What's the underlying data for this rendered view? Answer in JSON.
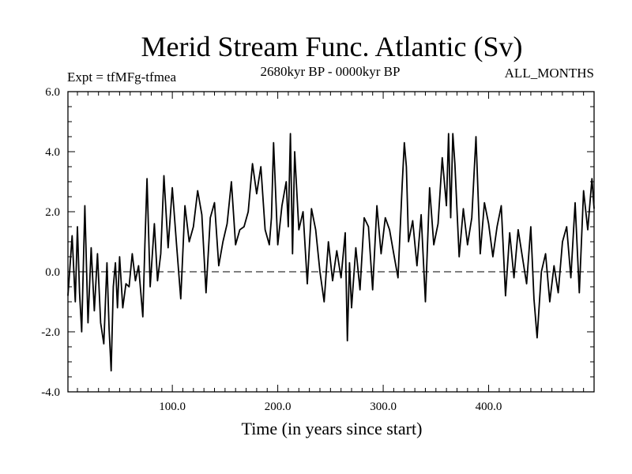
{
  "chart_data": {
    "type": "line",
    "title": "Merid Stream Func. Atlantic (Sv)",
    "subtitle_left": "Expt = tfMFg-tfmea",
    "subtitle_center": "2680kyr BP - 0000kyr BP",
    "subtitle_right": "ALL_MONTHS",
    "xlabel": "Time (in years since start)",
    "ylabel": "",
    "xlim": [
      1,
      500
    ],
    "ylim": [
      -4.0,
      6.0
    ],
    "x_ticks": [
      {
        "value": 100,
        "label": "100.0"
      },
      {
        "value": 200,
        "label": "200.0"
      },
      {
        "value": 300,
        "label": "300.0"
      },
      {
        "value": 400,
        "label": "400.0"
      }
    ],
    "y_ticks": [
      {
        "value": -4,
        "label": "-4.0"
      },
      {
        "value": -2,
        "label": "-2.0"
      },
      {
        "value": 0,
        "label": "0.0"
      },
      {
        "value": 2,
        "label": "2.0"
      },
      {
        "value": 4,
        "label": "4.0"
      },
      {
        "value": 6,
        "label": "6.0"
      }
    ],
    "reference_line": {
      "y": 0,
      "style": "dashed"
    },
    "series": [
      {
        "name": "Merid Stream Func. Atlantic",
        "x": [
          1,
          5,
          8,
          10,
          12,
          14,
          17,
          20,
          23,
          26,
          29,
          32,
          35,
          38,
          40,
          42,
          44,
          46,
          48,
          50,
          53,
          56,
          59,
          62,
          65,
          68,
          72,
          74,
          76,
          79,
          83,
          86,
          89,
          92,
          96,
          100,
          104,
          108,
          112,
          116,
          120,
          124,
          128,
          132,
          136,
          140,
          144,
          148,
          152,
          156,
          160,
          164,
          168,
          172,
          176,
          180,
          184,
          188,
          192,
          194,
          196,
          200,
          204,
          208,
          210,
          212,
          214,
          216,
          220,
          224,
          228,
          232,
          236,
          240,
          244,
          248,
          252,
          256,
          260,
          264,
          266,
          268,
          270,
          274,
          278,
          282,
          286,
          290,
          294,
          298,
          302,
          306,
          310,
          314,
          318,
          320,
          322,
          324,
          328,
          332,
          336,
          340,
          344,
          348,
          352,
          356,
          360,
          362,
          364,
          366,
          368,
          372,
          376,
          380,
          384,
          388,
          392,
          396,
          400,
          404,
          408,
          412,
          416,
          420,
          424,
          428,
          432,
          436,
          440,
          443,
          446,
          450,
          454,
          458,
          462,
          466,
          470,
          474,
          478,
          482,
          486,
          490,
          494,
          498,
          500
        ],
        "values": [
          -0.8,
          1.2,
          -1.0,
          1.5,
          -0.7,
          -2.0,
          2.2,
          -1.7,
          0.8,
          -1.3,
          0.6,
          -1.7,
          -2.4,
          0.3,
          -1.9,
          -3.3,
          -0.5,
          0.3,
          -1.2,
          0.5,
          -1.2,
          -0.4,
          -0.5,
          0.6,
          -0.3,
          0.2,
          -1.5,
          0.9,
          3.1,
          -0.5,
          1.6,
          -0.3,
          0.6,
          3.2,
          0.8,
          2.8,
          0.9,
          -0.9,
          2.2,
          1.0,
          1.5,
          2.7,
          1.9,
          -0.7,
          1.8,
          2.3,
          0.2,
          1.0,
          1.6,
          3.0,
          0.9,
          1.4,
          1.5,
          2.0,
          3.6,
          2.6,
          3.5,
          1.4,
          0.9,
          1.8,
          4.3,
          0.9,
          2.2,
          3.0,
          1.5,
          4.6,
          0.6,
          4.0,
          1.4,
          2.0,
          -0.4,
          2.1,
          1.4,
          0.0,
          -1.0,
          1.0,
          -0.3,
          0.7,
          -0.2,
          1.3,
          -2.3,
          0.3,
          -1.2,
          0.8,
          -0.6,
          1.8,
          1.5,
          -0.6,
          2.2,
          0.6,
          1.8,
          1.4,
          0.6,
          -0.2,
          2.9,
          4.3,
          3.5,
          1.0,
          1.7,
          0.2,
          1.9,
          -1.0,
          2.8,
          0.9,
          1.6,
          3.8,
          2.2,
          4.6,
          1.8,
          4.6,
          3.6,
          0.5,
          2.1,
          0.9,
          1.8,
          4.5,
          0.6,
          2.3,
          1.6,
          0.5,
          1.5,
          2.2,
          -0.8,
          1.3,
          -0.2,
          1.4,
          0.5,
          -0.4,
          1.5,
          -0.9,
          -2.2,
          0.0,
          0.6,
          -1.0,
          0.2,
          -0.7,
          1.0,
          1.5,
          -0.2,
          2.3,
          -0.7,
          2.7,
          1.4,
          3.1,
          2.1
        ]
      }
    ]
  }
}
